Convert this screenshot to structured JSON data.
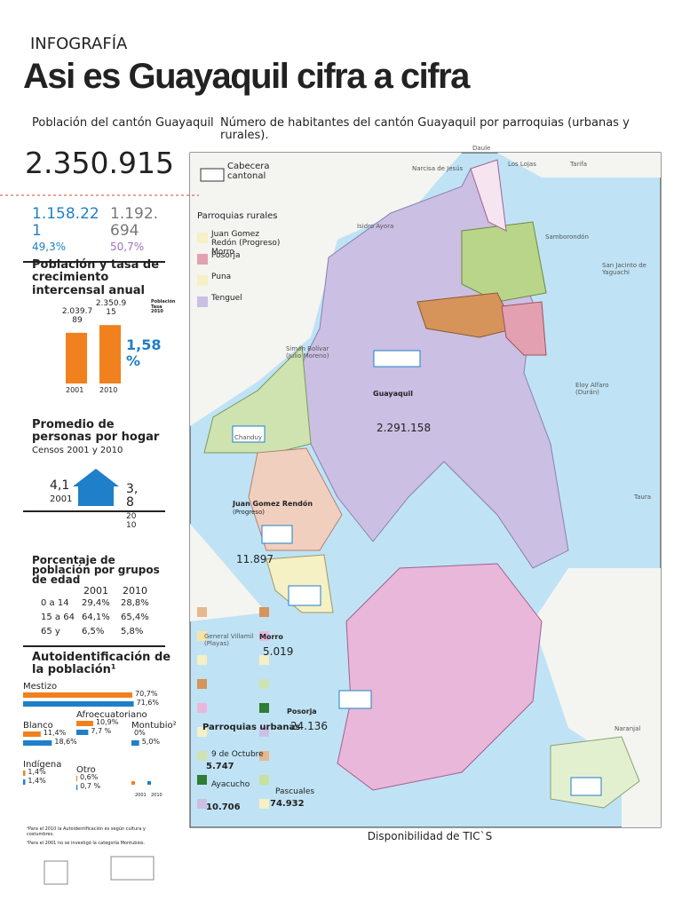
{
  "header": {
    "section": "INFOGRAFÍA",
    "title": "Asi es Guayaquil cifra a cifra"
  },
  "population": {
    "label": "Población del cantón Guayaquil",
    "total": "2.350.915",
    "men": "1.158.221",
    "men_pct": "49,3%",
    "women": "1.192.694",
    "women_pct": "50,7%"
  },
  "growth": {
    "title": "Población y tasa de crecimiento intercensal anual",
    "legend": "Población Tasa 2010",
    "categories": [
      "2001",
      "2010"
    ],
    "values": [
      2039789,
      2350915
    ],
    "value_labels": [
      "2.039.789",
      "2.350.915"
    ],
    "color": "#f0811e",
    "rate": "1,58 %"
  },
  "household": {
    "title": "Promedio de personas por hogar",
    "subtitle": "Censos 2001 y 2010",
    "value_2001": "4,1",
    "year_2001": "2001",
    "value_2010": "3,8",
    "year_2010": "2010"
  },
  "age": {
    "title": "Porcentaje de población por grupos de edad",
    "columns": [
      "2001",
      "2010"
    ],
    "rows": [
      [
        "0 a 14",
        "29,4%",
        "28,8%"
      ],
      [
        "15 a 64",
        "64,1%",
        "65,4%"
      ],
      [
        "65 y",
        "6,5%",
        "5,8%"
      ]
    ]
  },
  "ethnicity": {
    "title": "Autoidentificación de la población¹",
    "series": [
      {
        "name": "2001",
        "color": "#f0811e"
      },
      {
        "name": "2010",
        "color": "#1f7fc8"
      }
    ],
    "groups": [
      {
        "name": "Mestizo",
        "values": [
          70.7,
          71.6
        ],
        "value_labels": [
          "70,7%",
          "71,6%"
        ]
      },
      {
        "name": "Blanco",
        "values": [
          11.4,
          18.6
        ],
        "value_labels": [
          "11,4%",
          "18,6%"
        ]
      },
      {
        "name": "Afroecuatoriano",
        "values": [
          10.9,
          7.7
        ],
        "value_labels": [
          "10,9%",
          "7,7 %"
        ]
      },
      {
        "name": "Montubio²",
        "values": [
          0,
          5.0
        ],
        "value_labels": [
          "0%",
          "5,0%"
        ]
      },
      {
        "name": "Indígena",
        "values": [
          1.4,
          1.4
        ],
        "value_labels": [
          "1,4%",
          "1,4%"
        ]
      },
      {
        "name": "Otro",
        "values": [
          0.6,
          0.7
        ],
        "value_labels": [
          "0,6%",
          "0,7 %"
        ]
      }
    ]
  },
  "footnotes": [
    "¹Para el 2010 la Autoidentificación es según cultura y costumbres.",
    "²Para el 2001 no se investigó la categoría Montubios."
  ],
  "map": {
    "title": "Número de habitantes del cantón Guayaquil por parroquias (urbanas y rurales).",
    "places": [
      "Daule",
      "Los Lojas",
      "Tarifa",
      "Narcisa de Jesús",
      "Isidro Ayora",
      "Samborondón",
      "San Jacinto de Yaguachi",
      "Simón Bolívar (Julio Moreno)",
      "Eloy Alfaro (Durán)",
      "Taura",
      "Naranjal",
      "General Villamil (Playas)",
      "Chanduy"
    ],
    "parishes": [
      {
        "name": "Guayaquil",
        "value": "2.291.158"
      },
      {
        "name": "Juan Gomez Rendón",
        "note": "(Progreso)",
        "value": "11.897"
      },
      {
        "name": "Morro",
        "value": "5.019"
      },
      {
        "name": "Posorja",
        "value": "24.136"
      }
    ],
    "legend": {
      "capital": "Cabecera cantonal",
      "rural_title": "Parroquias rurales",
      "rural": [
        "Juan Gomez Redón (Progreso) Morro",
        "Posorja",
        "Puna",
        "Tenguel"
      ],
      "urban_title": "Parroquias urbanas",
      "urban": [
        {
          "name": "9 de Octubre",
          "value": "5.747"
        },
        {
          "name": "Ayacucho",
          "value": "10.706"
        },
        {
          "name": "Pascuales",
          "value": "74.932"
        }
      ]
    }
  },
  "tic": {
    "title": "Disponibilidad de TIC`S"
  }
}
